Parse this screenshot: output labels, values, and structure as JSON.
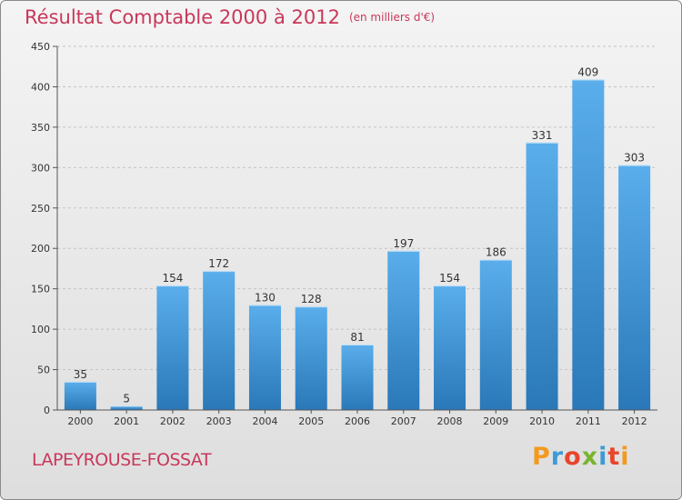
{
  "header": {
    "title": "Résultat Comptable 2000 à 2012",
    "unit": "(en milliers d'€)"
  },
  "footer": {
    "commune": "LAPEYROUSE-FOSSAT",
    "logo": "Proxiti"
  },
  "colors": {
    "bar_top": "#5aaeeb",
    "bar_bottom": "#2a78b8",
    "title": "#c8385a"
  },
  "chart_data": {
    "type": "bar",
    "title": "Résultat Comptable 2000 à 2012",
    "ylabel": "en milliers d'€",
    "xlabel": "",
    "categories": [
      "2000",
      "2001",
      "2002",
      "2003",
      "2004",
      "2005",
      "2006",
      "2007",
      "2008",
      "2009",
      "2010",
      "2011",
      "2012"
    ],
    "values": [
      35,
      5,
      154,
      172,
      130,
      128,
      81,
      197,
      154,
      186,
      331,
      409,
      303
    ],
    "yticks": [
      0,
      50,
      100,
      150,
      200,
      250,
      300,
      350,
      400,
      450
    ],
    "ylim": [
      0,
      450
    ],
    "grid": true,
    "legend": "none"
  }
}
